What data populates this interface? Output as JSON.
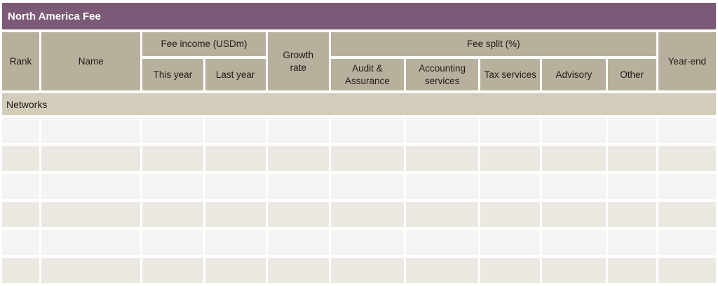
{
  "colors": {
    "title_bg": "#7c5a77",
    "title_text": "#ffffff",
    "header_bg": "#b7b09c",
    "section_bg": "#d2ccba",
    "row_light": "#f5f4f2",
    "row_alt": "#ebe8e1",
    "text_dark": "#1d1c1a",
    "grid_white": "#ffffff"
  },
  "table": {
    "title": "North America Fee",
    "column_groups": [
      {
        "label": "Fee income (USDm)"
      },
      {
        "label": "Fee split (%)"
      }
    ],
    "columns": [
      {
        "label": "Rank"
      },
      {
        "label": "Name"
      },
      {
        "label": "This year"
      },
      {
        "label": "Last year"
      },
      {
        "label": "Growth rate"
      },
      {
        "label": "Audit & Assurance"
      },
      {
        "label": "Accounting services"
      },
      {
        "label": "Tax services"
      },
      {
        "label": "Advisory"
      },
      {
        "label": "Other"
      },
      {
        "label": "Year-end"
      }
    ],
    "section_rows": [
      {
        "label": "Networks"
      }
    ],
    "data_rows": [
      [
        "",
        "",
        "",
        "",
        "",
        "",
        "",
        "",
        "",
        "",
        ""
      ],
      [
        "",
        "",
        "",
        "",
        "",
        "",
        "",
        "",
        "",
        "",
        ""
      ],
      [
        "",
        "",
        "",
        "",
        "",
        "",
        "",
        "",
        "",
        "",
        ""
      ],
      [
        "",
        "",
        "",
        "",
        "",
        "",
        "",
        "",
        "",
        "",
        ""
      ],
      [
        "",
        "",
        "",
        "",
        "",
        "",
        "",
        "",
        "",
        "",
        ""
      ],
      [
        "",
        "",
        "",
        "",
        "",
        "",
        "",
        "",
        "",
        "",
        ""
      ]
    ]
  }
}
